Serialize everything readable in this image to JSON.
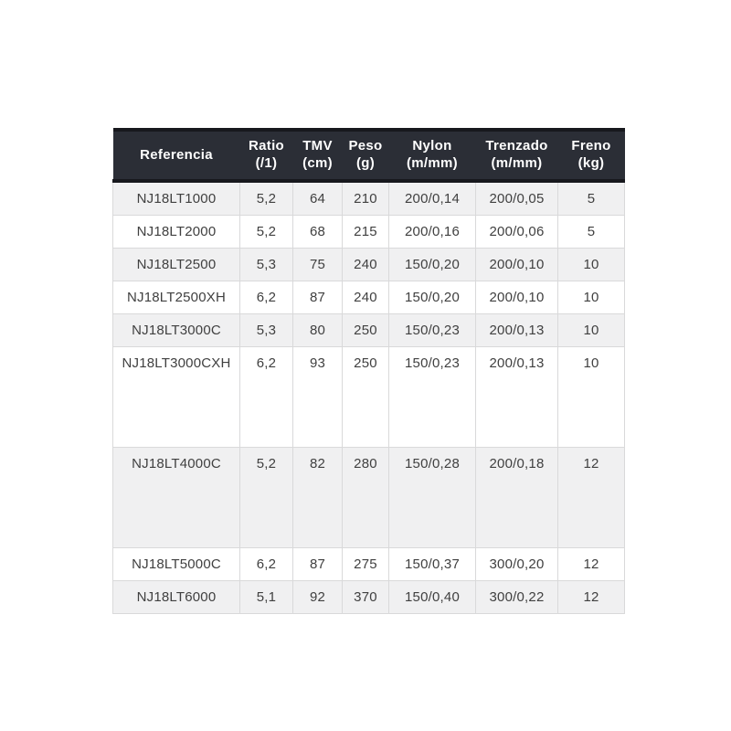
{
  "chart_data": {
    "type": "table",
    "title": "",
    "columns": [
      {
        "label": "Referencia",
        "unit": ""
      },
      {
        "label": "Ratio",
        "unit": "(/1)"
      },
      {
        "label": "TMV",
        "unit": "(cm)"
      },
      {
        "label": "Peso",
        "unit": "(g)"
      },
      {
        "label": "Nylon",
        "unit": "(m/mm)"
      },
      {
        "label": "Trenzado",
        "unit": "(m/mm)"
      },
      {
        "label": "Freno",
        "unit": "(kg)"
      }
    ],
    "rows": [
      [
        "NJ18LT1000",
        "5,2",
        "64",
        "210",
        "200/0,14",
        "200/0,05",
        "5"
      ],
      [
        "NJ18LT2000",
        "5,2",
        "68",
        "215",
        "200/0,16",
        "200/0,06",
        "5"
      ],
      [
        "NJ18LT2500",
        "5,3",
        "75",
        "240",
        "150/0,20",
        "200/0,10",
        "10"
      ],
      [
        "NJ18LT2500XH",
        "6,2",
        "87",
        "240",
        "150/0,20",
        "200/0,10",
        "10"
      ],
      [
        "NJ18LT3000C",
        "5,3",
        "80",
        "250",
        "150/0,23",
        "200/0,13",
        "10"
      ],
      [
        "NJ18LT3000CXH",
        "6,2",
        "93",
        "250",
        "150/0,23",
        "200/0,13",
        "10"
      ],
      [
        "NJ18LT4000C",
        "5,2",
        "82",
        "280",
        "150/0,28",
        "200/0,18",
        "12"
      ],
      [
        "NJ18LT5000C",
        "6,2",
        "87",
        "275",
        "150/0,37",
        "300/0,20",
        "12"
      ],
      [
        "NJ18LT6000",
        "5,1",
        "92",
        "370",
        "150/0,40",
        "300/0,22",
        "12"
      ]
    ]
  },
  "colors": {
    "header_background": "#2b2e36",
    "header_border": "#17181d",
    "header_text": "#ffffff",
    "row_alt_background": "#f0f0f1",
    "row_background": "#ffffff",
    "cell_border": "#d9d9da",
    "cell_text": "#404040",
    "page_background": "#ffffff"
  }
}
